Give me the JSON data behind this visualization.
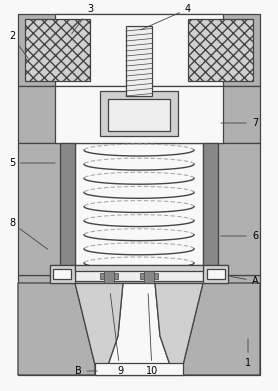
{
  "bg_color": "#ffffff",
  "line_color": "#444444",
  "fill_gray": "#b0b0b0",
  "fill_mid": "#d0d0d0",
  "fill_light": "#eeeeee",
  "fill_white": "#f8f8f8",
  "fill_dark": "#888888",
  "figsize": [
    2.78,
    3.91
  ],
  "dpi": 100
}
